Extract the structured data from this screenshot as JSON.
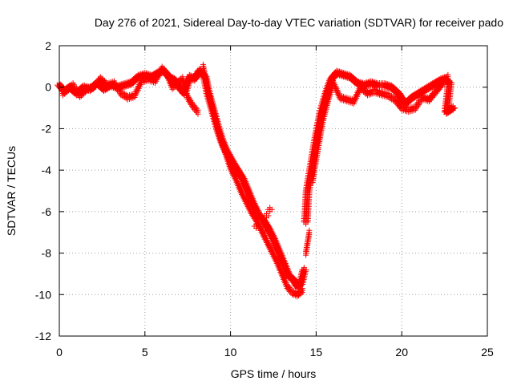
{
  "chart_data": {
    "type": "scatter",
    "title": "Day 276 of 2021, Sidereal Day-to-day VTEC variation (SDTVAR) for receiver pado",
    "xlabel": "GPS time / hours",
    "ylabel": "SDTVAR / TECUs",
    "xlim": [
      0,
      25
    ],
    "ylim": [
      -12,
      2
    ],
    "xticks": [
      0,
      5,
      10,
      15,
      20,
      25
    ],
    "yticks": [
      2,
      0,
      -2,
      -4,
      -6,
      -8,
      -10,
      -12
    ],
    "grid": true,
    "marker": "+",
    "series": [
      {
        "name": "SDTVAR",
        "color": "#ff0000",
        "points": [
          [
            0.0,
            0.1
          ],
          [
            0.3,
            -0.2
          ],
          [
            0.6,
            0.0
          ],
          [
            1.0,
            -0.3
          ],
          [
            1.4,
            0.0
          ],
          [
            1.8,
            -0.1
          ],
          [
            2.2,
            0.2
          ],
          [
            2.6,
            -0.1
          ],
          [
            3.0,
            0.1
          ],
          [
            3.4,
            0.0
          ],
          [
            3.8,
            0.1
          ],
          [
            4.2,
            0.2
          ],
          [
            4.6,
            0.5
          ],
          [
            5.0,
            0.6
          ],
          [
            5.4,
            0.5
          ],
          [
            5.8,
            0.7
          ],
          [
            6.1,
            0.8
          ],
          [
            6.4,
            0.5
          ],
          [
            6.8,
            0.3
          ],
          [
            7.0,
            0.0
          ],
          [
            7.3,
            -0.3
          ],
          [
            7.6,
            0.5
          ],
          [
            7.9,
            0.4
          ],
          [
            8.2,
            0.8
          ],
          [
            8.5,
            0.5
          ],
          [
            8.7,
            -0.3
          ],
          [
            8.9,
            -0.9
          ],
          [
            9.1,
            -1.5
          ],
          [
            9.3,
            -2.1
          ],
          [
            9.5,
            -2.6
          ],
          [
            9.7,
            -3.0
          ],
          [
            9.9,
            -3.3
          ],
          [
            10.1,
            -3.6
          ],
          [
            10.4,
            -4.0
          ],
          [
            10.7,
            -4.4
          ],
          [
            11.0,
            -5.0
          ],
          [
            11.3,
            -5.6
          ],
          [
            11.6,
            -6.1
          ],
          [
            11.9,
            -6.4
          ],
          [
            12.2,
            -6.8
          ],
          [
            12.5,
            -7.3
          ],
          [
            12.8,
            -7.9
          ],
          [
            13.1,
            -8.5
          ],
          [
            13.4,
            -9.1
          ],
          [
            13.7,
            -9.3
          ],
          [
            13.9,
            -9.6
          ],
          [
            14.1,
            -9.5
          ],
          [
            14.3,
            -8.8
          ],
          [
            14.4,
            -6.5
          ],
          [
            14.5,
            -5.0
          ],
          [
            14.7,
            -4.0
          ],
          [
            15.0,
            -2.5
          ],
          [
            15.3,
            -1.2
          ],
          [
            15.6,
            -0.3
          ],
          [
            15.9,
            0.4
          ],
          [
            16.2,
            0.7
          ],
          [
            16.6,
            0.6
          ],
          [
            17.0,
            0.5
          ],
          [
            17.4,
            0.2
          ],
          [
            17.8,
            0.1
          ],
          [
            18.2,
            0.2
          ],
          [
            18.6,
            0.1
          ],
          [
            19.0,
            0.1
          ],
          [
            19.4,
            0.0
          ],
          [
            19.8,
            -0.3
          ],
          [
            20.2,
            -0.8
          ],
          [
            20.6,
            -0.5
          ],
          [
            21.0,
            -0.3
          ],
          [
            21.4,
            -0.1
          ],
          [
            21.8,
            0.1
          ],
          [
            22.2,
            0.3
          ],
          [
            22.5,
            0.4
          ],
          [
            22.8,
            0.2
          ],
          [
            22.6,
            -1.2
          ],
          [
            22.8,
            -1.1
          ],
          [
            23.0,
            -1.0
          ]
        ],
        "extra_points": [
          [
            0.2,
            -0.3
          ],
          [
            0.8,
            0.1
          ],
          [
            1.2,
            -0.4
          ],
          [
            1.6,
            -0.1
          ],
          [
            2.0,
            0.0
          ],
          [
            2.4,
            0.4
          ],
          [
            2.8,
            0.1
          ],
          [
            3.2,
            0.2
          ],
          [
            3.6,
            -0.3
          ],
          [
            4.0,
            -0.5
          ],
          [
            4.4,
            -0.4
          ],
          [
            4.8,
            0.3
          ],
          [
            5.2,
            0.4
          ],
          [
            5.6,
            0.3
          ],
          [
            6.0,
            0.9
          ],
          [
            6.3,
            0.6
          ],
          [
            6.6,
            0.0
          ],
          [
            7.2,
            0.4
          ],
          [
            7.5,
            -0.5
          ],
          [
            7.8,
            -0.9
          ],
          [
            8.1,
            -1.2
          ],
          [
            8.4,
            1.0
          ],
          [
            8.6,
            0.2
          ],
          [
            8.8,
            -0.5
          ],
          [
            9.0,
            -1.2
          ],
          [
            9.2,
            -1.8
          ],
          [
            9.4,
            -2.4
          ],
          [
            9.6,
            -2.9
          ],
          [
            9.8,
            -3.4
          ],
          [
            10.0,
            -3.9
          ],
          [
            10.3,
            -4.4
          ],
          [
            10.6,
            -5.0
          ],
          [
            10.9,
            -5.5
          ],
          [
            11.2,
            -6.0
          ],
          [
            11.5,
            -6.4
          ],
          [
            11.8,
            -6.9
          ],
          [
            12.1,
            -7.4
          ],
          [
            12.4,
            -7.9
          ],
          [
            12.7,
            -8.4
          ],
          [
            13.0,
            -9.0
          ],
          [
            13.3,
            -9.6
          ],
          [
            13.6,
            -9.9
          ],
          [
            13.9,
            -10.0
          ],
          [
            14.2,
            -9.8
          ],
          [
            14.4,
            -8.0
          ],
          [
            14.6,
            -7.0
          ],
          [
            14.8,
            -4.5
          ],
          [
            15.1,
            -3.0
          ],
          [
            15.4,
            -1.6
          ],
          [
            15.7,
            -0.6
          ],
          [
            16.0,
            0.2
          ],
          [
            16.4,
            -0.5
          ],
          [
            16.8,
            -0.6
          ],
          [
            17.2,
            -0.7
          ],
          [
            17.6,
            0.0
          ],
          [
            18.0,
            -0.3
          ],
          [
            18.4,
            -0.2
          ],
          [
            18.8,
            -0.3
          ],
          [
            19.2,
            -0.4
          ],
          [
            19.6,
            -0.6
          ],
          [
            20.0,
            -1.0
          ],
          [
            20.4,
            -1.1
          ],
          [
            20.8,
            -1.0
          ],
          [
            21.2,
            -0.5
          ],
          [
            21.6,
            -0.6
          ],
          [
            22.0,
            -0.2
          ],
          [
            22.4,
            0.2
          ],
          [
            22.7,
            0.5
          ],
          [
            11.5,
            -6.7
          ],
          [
            11.9,
            -6.9
          ],
          [
            12.1,
            -6.2
          ],
          [
            12.3,
            -5.9
          ]
        ]
      }
    ]
  }
}
